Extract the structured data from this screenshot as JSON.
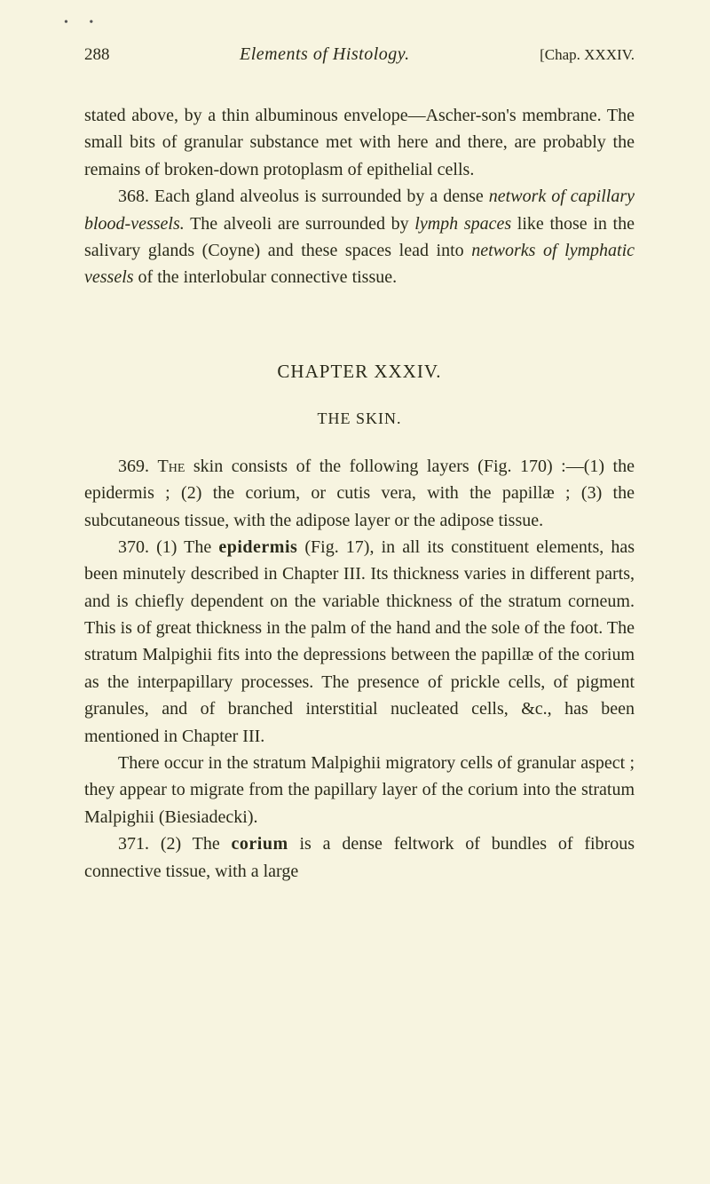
{
  "page": {
    "number": "288",
    "header_title_italic": "Elements of Histology.",
    "chap_ref": "[Chap. XXXIV."
  },
  "para1": {
    "t1": "stated above, by a thin albuminous envelope—Ascher-son's membrane. The small bits of granular substance met with here and there, are probably the remains of broken-down protoplasm of epithelial cells."
  },
  "para2": {
    "t1": "368. Each gland alveolus is surrounded by a dense ",
    "t2": "network of capillary blood-vessels.",
    "t3": " The alveoli are surrounded by ",
    "t4": "lymph spaces",
    "t5": " like those in the salivary glands (Coyne) and these spaces lead into ",
    "t6": "networks of lymphatic vessels",
    "t7": " of the interlobular connective tissue."
  },
  "chapter": "CHAPTER XXXIV.",
  "section": "THE SKIN.",
  "para3": {
    "t1": "369. ",
    "t2": "The",
    "t3": " skin consists of the following layers (Fig. 170) :—(1) the epidermis ; (2) the corium, or cutis vera, with the papillæ ; (3) the subcutaneous tissue, with the adipose layer or the adipose tissue."
  },
  "para4": {
    "t1": "370. (1) The ",
    "t2": "epidermis",
    "t3": " (Fig. 17), in all its constituent elements, has been minutely described in Chapter III. Its thickness varies in different parts, and is chiefly dependent on the variable thickness of the stratum corneum. This is of great thickness in the palm of the hand and the sole of the foot. The stratum Malpighii fits into the depressions between the papillæ of the corium as the interpapillary processes. The presence of prickle cells, of pigment granules, and of branched interstitial nucleated cells, &c., has been mentioned in Chapter III."
  },
  "para5": {
    "t1": "There occur in the stratum Malpighii migratory cells of granular aspect ; they appear to migrate from the papillary layer of the corium into the stratum Malpighii (Biesiadecki)."
  },
  "para6": {
    "t1": "371. (2) The ",
    "t2": "corium",
    "t3": " is a dense feltwork of bundles of fibrous connective tissue, with a large"
  }
}
